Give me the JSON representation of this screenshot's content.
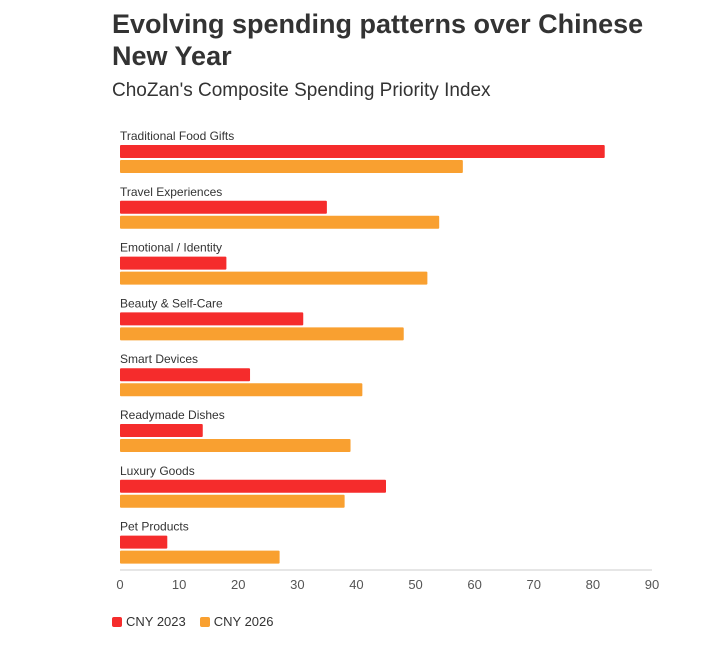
{
  "header": {
    "title": "Evolving spending patterns over Chinese New Year",
    "subtitle": "ChoZan's Composite Spending Priority Index"
  },
  "colors": {
    "series_2023": "#f52c2c",
    "series_2026": "#f9a030",
    "baseline": "#cccccc"
  },
  "chart_data": {
    "type": "bar",
    "orientation": "horizontal",
    "title": "Evolving spending patterns over Chinese New Year",
    "subtitle": "ChoZan's Composite Spending Priority Index",
    "xlabel": "",
    "ylabel": "",
    "xlim": [
      0,
      90
    ],
    "xticks": [
      0,
      10,
      20,
      30,
      40,
      50,
      60,
      70,
      80,
      90
    ],
    "categories": [
      "Traditional Food Gifts",
      "Travel Experiences",
      "Emotional / Identity",
      "Beauty & Self-Care",
      "Smart Devices",
      "Readymade Dishes",
      "Luxury Goods",
      "Pet Products"
    ],
    "series": [
      {
        "name": "CNY 2023",
        "color": "#f52c2c",
        "values": [
          82,
          35,
          18,
          31,
          22,
          14,
          45,
          8
        ]
      },
      {
        "name": "CNY 2026",
        "color": "#f9a030",
        "values": [
          58,
          54,
          52,
          48,
          41,
          39,
          38,
          27
        ]
      }
    ],
    "legend_position": "bottom-left"
  }
}
